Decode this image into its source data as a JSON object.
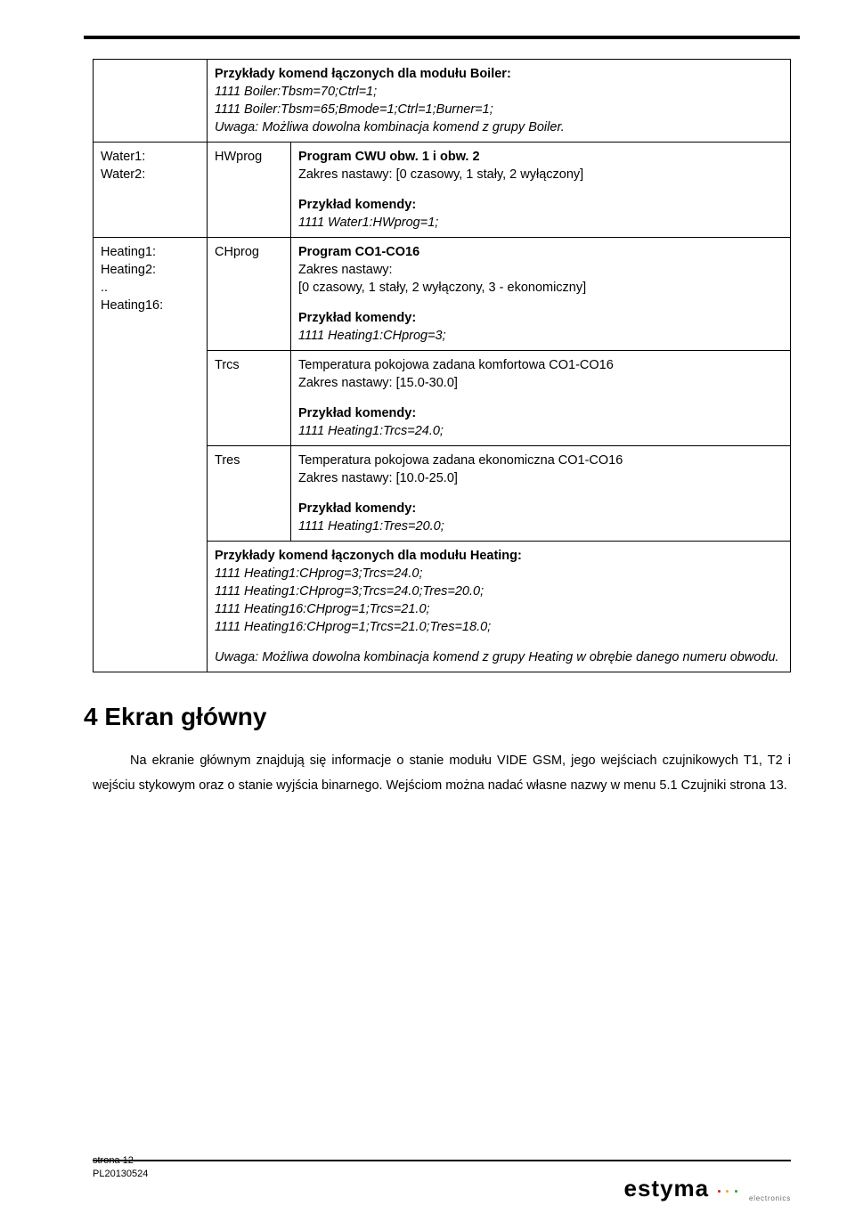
{
  "rows": {
    "intro": {
      "heading": "Przykłady komend łączonych dla modułu Boiler:",
      "l1": "1111 Boiler:Tbsm=70;Ctrl=1;",
      "l2": "1111 Boiler:Tbsm=65;Bmode=1;Ctrl=1;Burner=1;",
      "l3": "Uwaga: Możliwa dowolna kombinacja komend z grupy Boiler."
    },
    "water": {
      "a1": "Water1:",
      "a2": "Water2:",
      "b": "HWprog",
      "c_bold": "Program CWU obw. 1 i obw. 2",
      "c_line": "Zakres nastawy: [0 czasowy, 1 stały, 2 wyłączony]",
      "c_ex_h": "Przykład komendy:",
      "c_ex": "1111 Water1:HWprog=1;"
    },
    "heating": {
      "a1": "Heating1:",
      "a2": "Heating2:",
      "a3": "..",
      "a4": "Heating16:",
      "chprog": {
        "b": "CHprog",
        "c_bold": "Program CO1-CO16",
        "c_l1": "Zakres nastawy:",
        "c_l2": "[0 czasowy, 1 stały, 2 wyłączony, 3 - ekonomiczny]",
        "c_ex_h": "Przykład komendy:",
        "c_ex": "1111 Heating1:CHprog=3;"
      },
      "trcs": {
        "b": "Trcs",
        "c_l1": "Temperatura pokojowa zadana komfortowa CO1-CO16",
        "c_l2": "Zakres nastawy: [15.0-30.0]",
        "c_ex_h": "Przykład komendy:",
        "c_ex": "1111 Heating1:Trcs=24.0;"
      },
      "tres": {
        "b": "Tres",
        "c_l1": "Temperatura pokojowa zadana ekonomiczna CO1-CO16",
        "c_l2": "Zakres nastawy: [10.0-25.0]",
        "c_ex_h": "Przykład komendy:",
        "c_ex": "1111 Heating1:Tres=20.0;"
      },
      "combined": {
        "h": "Przykłady komend łączonych dla modułu Heating:",
        "l1": "1111 Heating1:CHprog=3;Trcs=24.0;",
        "l2": "1111 Heating1:CHprog=3;Trcs=24.0;Tres=20.0;",
        "l3": "1111 Heating16:CHprog=1;Trcs=21.0;",
        "l4": "1111 Heating16:CHprog=1;Trcs=21.0;Tres=18.0;",
        "note": "Uwaga: Możliwa dowolna kombinacja komend z grupy Heating w obrębie danego numeru obwodu."
      }
    }
  },
  "section_title": "4 Ekran główny",
  "body_paragraph": "Na ekranie głównym znajdują się informacje o stanie modułu VIDE GSM, jego wejściach czujnikowych T1, T2 i wejściu stykowym oraz o stanie wyjścia binarnego. Wejściom można nadać własne nazwy w menu 5.1 Czujniki strona 13.",
  "footer": {
    "page_label": "strona 12",
    "doc_id": "PL20130524",
    "logo_text": "estyma",
    "logo_aux": "electronics",
    "logo_dot_colors": [
      "#e51b1b",
      "#f6a71b",
      "#2aa02a"
    ]
  },
  "colors": {
    "text": "#000000",
    "bg": "#ffffff",
    "border": "#000000"
  }
}
